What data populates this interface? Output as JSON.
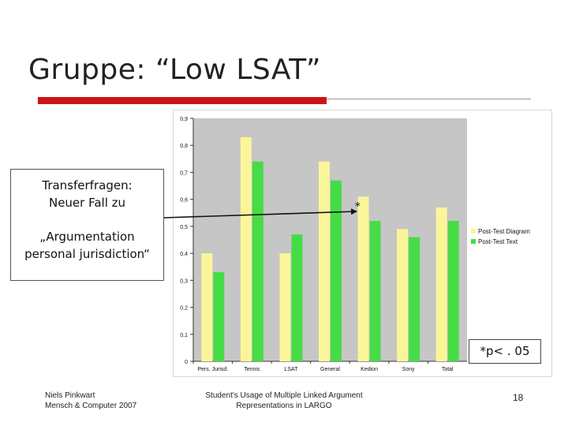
{
  "slide": {
    "title": "Gruppe: “Low LSAT”",
    "page_number": "18",
    "significance": "*p< . 05",
    "annotation_mark": "*"
  },
  "callout": {
    "line1": "Transferfragen:",
    "line2": "Neuer Fall zu",
    "line3": "„Argumentation",
    "line4": "personal jurisdiction“"
  },
  "footer": {
    "author": "Niels Pinkwart",
    "venue": "Mensch & Computer 2007",
    "talk_line1": "Student's Usage of Multiple Linked Argument",
    "talk_line2": "Representations in LARGO"
  },
  "chart_data": {
    "type": "bar",
    "categories": [
      "Pers. Jurisd.",
      "Tennis",
      "LSAT",
      "General",
      "Kedion",
      "Sony",
      "Total"
    ],
    "series": [
      {
        "name": "Post-Test Diagram",
        "color": "#fbf59a",
        "values": [
          0.4,
          0.83,
          0.4,
          0.74,
          0.61,
          0.49,
          0.57
        ]
      },
      {
        "name": "Post-Test Text",
        "color": "#46dc46",
        "values": [
          0.33,
          0.74,
          0.47,
          0.67,
          0.52,
          0.46,
          0.52
        ]
      }
    ],
    "yticks": [
      "0",
      "0,1",
      "0,2",
      "0,3",
      "0,4",
      "0,5",
      "0,6",
      "0,7",
      "0,8",
      "0,9"
    ],
    "ylim": [
      0,
      0.9
    ],
    "plot_background": "#c6c6c6",
    "legend_position": "right",
    "grid": false,
    "xlabel": "",
    "ylabel": "",
    "title": ""
  }
}
